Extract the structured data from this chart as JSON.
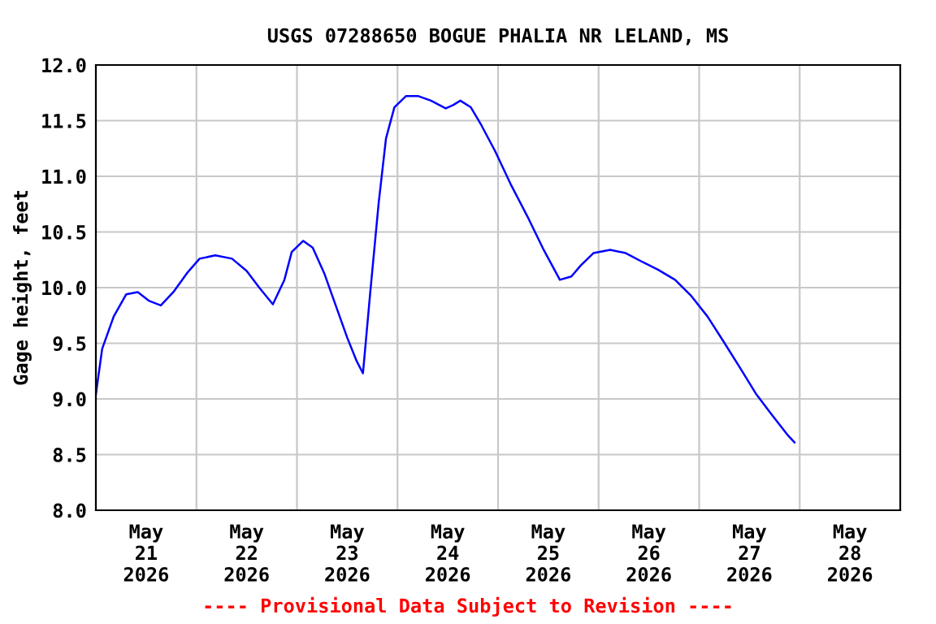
{
  "chart_data": {
    "type": "line",
    "title": "USGS 07288650 BOGUE PHALIA NR LELAND, MS",
    "ylabel": "Gage height, feet",
    "annotations": [
      "---- Provisional Data Subject to Revision ----"
    ],
    "x": [
      "2026-05-21T00:00",
      "2026-05-21T01:30",
      "2026-05-21T04:15",
      "2026-05-21T07:15",
      "2026-05-21T10:00",
      "2026-05-21T12:45",
      "2026-05-21T15:30",
      "2026-05-21T18:30",
      "2026-05-21T21:45",
      "2026-05-22T00:45",
      "2026-05-22T04:30",
      "2026-05-22T08:30",
      "2026-05-22T12:00",
      "2026-05-22T15:00",
      "2026-05-22T18:15",
      "2026-05-22T21:00",
      "2026-05-22T22:45",
      "2026-05-23T01:30",
      "2026-05-23T03:45",
      "2026-05-23T06:30",
      "2026-05-23T09:15",
      "2026-05-23T12:00",
      "2026-05-23T14:15",
      "2026-05-23T15:45",
      "2026-05-23T17:30",
      "2026-05-23T19:30",
      "2026-05-23T21:15",
      "2026-05-23T23:15",
      "2026-05-24T02:00",
      "2026-05-24T05:00",
      "2026-05-24T08:00",
      "2026-05-24T11:30",
      "2026-05-24T13:15",
      "2026-05-24T15:00",
      "2026-05-24T17:30",
      "2026-05-24T20:00",
      "2026-05-24T23:15",
      "2026-05-25T03:00",
      "2026-05-25T07:00",
      "2026-05-25T10:45",
      "2026-05-25T14:45",
      "2026-05-25T17:30",
      "2026-05-25T19:45",
      "2026-05-25T22:45",
      "2026-05-26T02:45",
      "2026-05-26T06:30",
      "2026-05-26T10:30",
      "2026-05-26T14:15",
      "2026-05-26T18:15",
      "2026-05-26T22:00",
      "2026-05-27T02:00",
      "2026-05-27T05:45",
      "2026-05-27T09:45",
      "2026-05-27T13:30",
      "2026-05-27T17:30",
      "2026-05-27T21:15",
      "2026-05-27T22:45"
    ],
    "series": [
      {
        "color": "#0000ff",
        "values": [
          9.04,
          9.45,
          9.74,
          9.94,
          9.96,
          9.88,
          9.84,
          9.96,
          10.13,
          10.26,
          10.29,
          10.26,
          10.15,
          10.0,
          9.85,
          10.07,
          10.32,
          10.42,
          10.36,
          10.13,
          9.84,
          9.55,
          9.34,
          9.23,
          9.96,
          10.76,
          11.34,
          11.62,
          11.72,
          11.72,
          11.68,
          11.61,
          11.64,
          11.68,
          11.62,
          11.46,
          11.23,
          10.93,
          10.64,
          10.35,
          10.07,
          10.1,
          10.2,
          10.31,
          10.34,
          10.31,
          10.23,
          10.16,
          10.07,
          9.93,
          9.74,
          9.52,
          9.28,
          9.05,
          8.85,
          8.67,
          8.61
        ]
      }
    ],
    "xlim": [
      "2026-05-21T00:00",
      "2026-05-29T00:00"
    ],
    "xticks": [
      {
        "value": "2026-05-21T12:00",
        "label": "May\n21\n2026"
      },
      {
        "value": "2026-05-22T12:00",
        "label": "May\n22\n2026"
      },
      {
        "value": "2026-05-23T12:00",
        "label": "May\n23\n2026"
      },
      {
        "value": "2026-05-24T12:00",
        "label": "May\n24\n2026"
      },
      {
        "value": "2026-05-25T12:00",
        "label": "May\n25\n2026"
      },
      {
        "value": "2026-05-26T12:00",
        "label": "May\n26\n2026"
      },
      {
        "value": "2026-05-27T12:00",
        "label": "May\n27\n2026"
      },
      {
        "value": "2026-05-28T12:00",
        "label": "May\n28\n2026"
      },
      {
        "value": "2026-05-22T00:00",
        "label": null
      },
      {
        "value": "2026-05-23T00:00",
        "label": null
      },
      {
        "value": "2026-05-24T00:00",
        "label": null
      },
      {
        "value": "2026-05-25T00:00",
        "label": null
      },
      {
        "value": "2026-05-26T00:00",
        "label": null
      },
      {
        "value": "2026-05-27T00:00",
        "label": null
      },
      {
        "value": "2026-05-28T00:00",
        "label": null
      }
    ],
    "ylim": [
      8.0,
      12.0
    ],
    "yticks": [
      {
        "value": 8.0,
        "label": "8.0"
      },
      {
        "value": 8.5,
        "label": "8.5"
      },
      {
        "value": 9.0,
        "label": "9.0"
      },
      {
        "value": 9.5,
        "label": "9.5"
      },
      {
        "value": 10.0,
        "label": "10.0"
      },
      {
        "value": 10.5,
        "label": "10.5"
      },
      {
        "value": 11.0,
        "label": "11.0"
      },
      {
        "value": 11.5,
        "label": "11.5"
      },
      {
        "value": 12.0,
        "label": "12.0"
      }
    ],
    "grid": true,
    "legend": false
  }
}
